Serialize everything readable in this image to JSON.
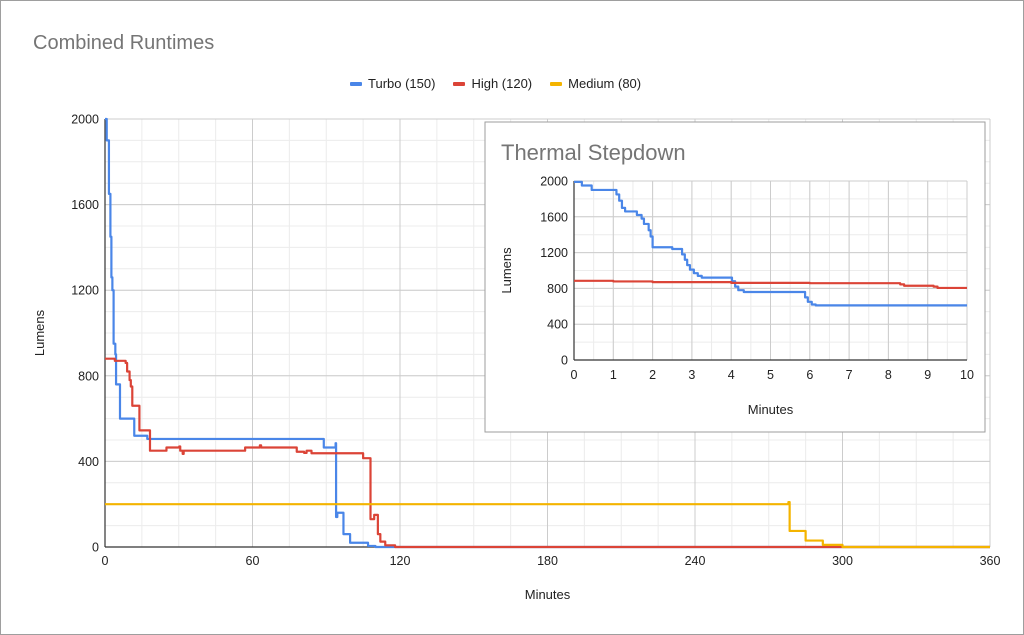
{
  "chart_data": [
    {
      "type": "line",
      "title": "Combined Runtimes",
      "xlabel": "Minutes",
      "ylabel": "Lumens",
      "xlim": [
        0,
        360
      ],
      "ylim": [
        0,
        2000
      ],
      "xticks": [
        0,
        60,
        120,
        180,
        240,
        300,
        360
      ],
      "yticks": [
        0,
        400,
        800,
        1200,
        1600,
        2000
      ],
      "grid": true,
      "legend_position": "top-center",
      "step": true,
      "series": [
        {
          "name": "Turbo (150)",
          "color": "#4a86e8",
          "points": [
            [
              0,
              2000
            ],
            [
              0.7,
              1900
            ],
            [
              1.6,
              1650
            ],
            [
              2.2,
              1450
            ],
            [
              2.6,
              1260
            ],
            [
              3,
              1200
            ],
            [
              3.5,
              950
            ],
            [
              4.2,
              900
            ],
            [
              4.5,
              760
            ],
            [
              6.1,
              600
            ],
            [
              11.9,
              520
            ],
            [
              17.2,
              505
            ],
            [
              89,
              465
            ],
            [
              93.8,
              485
            ],
            [
              94,
              140
            ],
            [
              94.5,
              160
            ],
            [
              97,
              60
            ],
            [
              99.7,
              20
            ],
            [
              107,
              5
            ],
            [
              110,
              0
            ],
            [
              360,
              0
            ]
          ]
        },
        {
          "name": "High (120)",
          "color": "#db4437",
          "points": [
            [
              0,
              880
            ],
            [
              4,
              870
            ],
            [
              8.4,
              860
            ],
            [
              9,
              820
            ],
            [
              10,
              780
            ],
            [
              10.5,
              750
            ],
            [
              11.1,
              660
            ],
            [
              14,
              545
            ],
            [
              18.3,
              450
            ],
            [
              25,
              465
            ],
            [
              30.2,
              470
            ],
            [
              30.6,
              450
            ],
            [
              31.6,
              435
            ],
            [
              32,
              450
            ],
            [
              57,
              465
            ],
            [
              63,
              475
            ],
            [
              63.5,
              465
            ],
            [
              78,
              445
            ],
            [
              81,
              440
            ],
            [
              82,
              450
            ],
            [
              84,
              438
            ],
            [
              105,
              415
            ],
            [
              108,
              130
            ],
            [
              109.5,
              150
            ],
            [
              111,
              60
            ],
            [
              112,
              25
            ],
            [
              114,
              8
            ],
            [
              118,
              0
            ],
            [
              360,
              0
            ]
          ]
        },
        {
          "name": "Medium (80)",
          "color": "#f4b400",
          "points": [
            [
              0,
              200
            ],
            [
              278,
              210
            ],
            [
              278.5,
              75
            ],
            [
              285,
              30
            ],
            [
              292,
              10
            ],
            [
              300,
              0
            ],
            [
              360,
              0
            ]
          ]
        }
      ]
    },
    {
      "type": "line",
      "title": "Thermal Stepdown",
      "xlabel": "Minutes",
      "ylabel": "Lumens",
      "xlim": [
        0,
        10
      ],
      "ylim": [
        0,
        2000
      ],
      "xticks": [
        0,
        1,
        2,
        3,
        4,
        5,
        6,
        7,
        8,
        9,
        10
      ],
      "yticks": [
        0,
        400,
        800,
        1200,
        1600,
        2000
      ],
      "grid": true,
      "step": true,
      "series": [
        {
          "name": "Turbo (150)",
          "color": "#4a86e8",
          "points": [
            [
              0,
              1990
            ],
            [
              0.2,
              1950
            ],
            [
              0.45,
              1900
            ],
            [
              1.08,
              1850
            ],
            [
              1.15,
              1780
            ],
            [
              1.22,
              1700
            ],
            [
              1.3,
              1660
            ],
            [
              1.6,
              1620
            ],
            [
              1.72,
              1580
            ],
            [
              1.78,
              1520
            ],
            [
              1.9,
              1450
            ],
            [
              1.95,
              1380
            ],
            [
              2.0,
              1260
            ],
            [
              2.5,
              1240
            ],
            [
              2.75,
              1180
            ],
            [
              2.82,
              1120
            ],
            [
              2.88,
              1060
            ],
            [
              2.95,
              1010
            ],
            [
              3.05,
              970
            ],
            [
              3.15,
              940
            ],
            [
              3.25,
              920
            ],
            [
              4.02,
              880
            ],
            [
              4.1,
              820
            ],
            [
              4.18,
              780
            ],
            [
              4.32,
              760
            ],
            [
              5.88,
              700
            ],
            [
              5.95,
              650
            ],
            [
              6.05,
              620
            ],
            [
              6.15,
              610
            ],
            [
              10,
              610
            ]
          ]
        },
        {
          "name": "High (120)",
          "color": "#db4437",
          "points": [
            [
              0,
              885
            ],
            [
              1,
              878
            ],
            [
              2,
              870
            ],
            [
              4,
              862
            ],
            [
              6,
              858
            ],
            [
              8.3,
              845
            ],
            [
              8.4,
              830
            ],
            [
              9.15,
              820
            ],
            [
              9.25,
              805
            ],
            [
              10,
              805
            ]
          ]
        }
      ]
    }
  ]
}
